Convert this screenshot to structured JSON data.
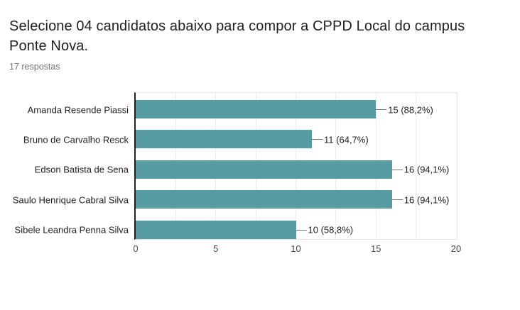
{
  "question": {
    "title": "Selecione 04 candidatos abaixo para compor a CPPD Local do campus Ponte Nova.",
    "responses_count_label": "17 respostas"
  },
  "chart_data": {
    "type": "bar",
    "orientation": "horizontal",
    "title": "Selecione 04 candidatos abaixo para compor a CPPD Local do campus Ponte Nova.",
    "total_responses": 17,
    "categories": [
      "Amanda Resende Piassi",
      "Bruno de Carvalho Resck",
      "Edson Batista de Sena",
      "Saulo Henrique Cabral Silva",
      "Sibele Leandra Penna Silva"
    ],
    "values": [
      15,
      11,
      16,
      16,
      10
    ],
    "value_labels": [
      "15 (88,2%)",
      "11 (64,7%)",
      "16 (94,1%)",
      "16 (94,1%)",
      "10 (58,8%)"
    ],
    "percentages": [
      88.2,
      64.7,
      94.1,
      94.1,
      58.8
    ],
    "x_ticks": [
      0,
      5,
      10,
      15,
      20
    ],
    "xlim": [
      0,
      20
    ],
    "gridline_step": 2.5,
    "grid": true,
    "legend_position": "none",
    "bar_color": "#579ba3",
    "axis_line_color": "#212121",
    "gridline_color": "#ededed",
    "text_color": "#212121",
    "muted_text_color": "#757575"
  }
}
